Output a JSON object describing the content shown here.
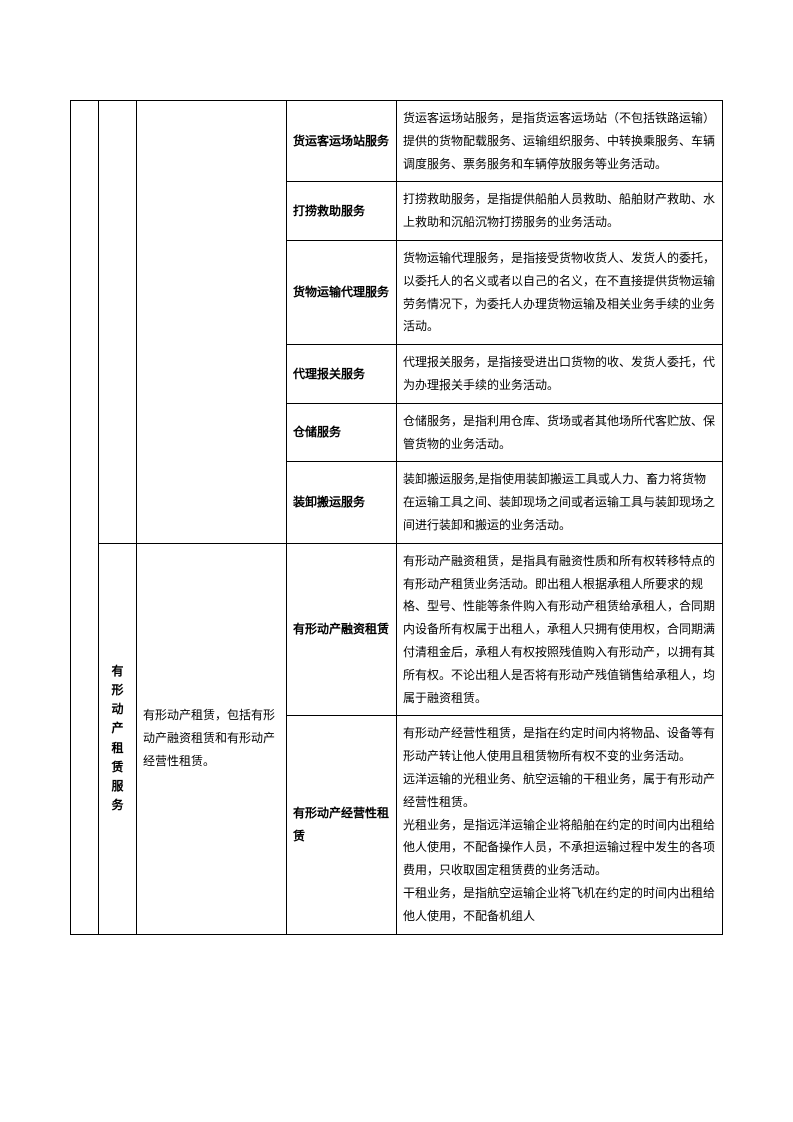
{
  "table": {
    "groupB_label": "有形动产租赁服务",
    "groupB_desc": "有形动产租赁，包括有形动产融资租赁和有形动产经营性租赁。",
    "rows": [
      {
        "name": "货运客运场站服务",
        "desc": "货运客运场站服务，是指货运客运场站（不包括铁路运输）提供的货物配载服务、运输组织服务、中转换乘服务、车辆调度服务、票务服务和车辆停放服务等业务活动。"
      },
      {
        "name": "打捞救助服务",
        "desc": "打捞救助服务，是指提供船舶人员救助、船舶财产救助、水上救助和沉船沉物打捞服务的业务活动。"
      },
      {
        "name": "货物运输代理服务",
        "desc": "货物运输代理服务，是指接受货物收货人、发货人的委托，以委托人的名义或者以自己的名义，在不直接提供货物运输劳务情况下，为委托人办理货物运输及相关业务手续的业务活动。"
      },
      {
        "name": "代理报关服务",
        "desc": "代理报关服务，是指接受进出口货物的收、发货人委托，代为办理报关手续的业务活动。"
      },
      {
        "name": "仓储服务",
        "desc": "仓储服务，是指利用仓库、货场或者其他场所代客贮放、保管货物的业务活动。"
      },
      {
        "name": "装卸搬运服务",
        "desc": "装卸搬运服务,是指使用装卸搬运工具或人力、畜力将货物在运输工具之间、装卸现场之间或者运输工具与装卸现场之间进行装卸和搬运的业务活动。"
      }
    ],
    "groupB_rows": [
      {
        "name": "有形动产融资租赁",
        "desc": "有形动产融资租赁，是指具有融资性质和所有权转移特点的有形动产租赁业务活动。即出租人根据承租人所要求的规格、型号、性能等条件购入有形动产租赁给承租人，合同期内设备所有权属于出租人，承租人只拥有使用权，合同期满付清租金后，承租人有权按照残值购入有形动产，以拥有其所有权。不论出租人是否将有形动产残值销售给承租人，均属于融资租赁。"
      },
      {
        "name": "有形动产经营性租赁",
        "desc": "有形动产经营性租赁，是指在约定时间内将物品、设备等有形动产转让他人使用且租赁物所有权不变的业务活动。\n远洋运输的光租业务、航空运输的干租业务，属于有形动产经营性租赁。\n光租业务，是指远洋运输企业将船舶在约定的时间内出租给他人使用，不配备操作人员，不承担运输过程中发生的各项费用，只收取固定租赁费的业务活动。\n干租业务，是指航空运输企业将飞机在约定的时间内出租给他人使用，不配备机组人"
      }
    ]
  },
  "style": {
    "font_family": "SimSun",
    "font_size_pt": 9,
    "line_height": 1.9,
    "border_color": "#000000",
    "text_color": "#000000",
    "background_color": "#ffffff"
  }
}
